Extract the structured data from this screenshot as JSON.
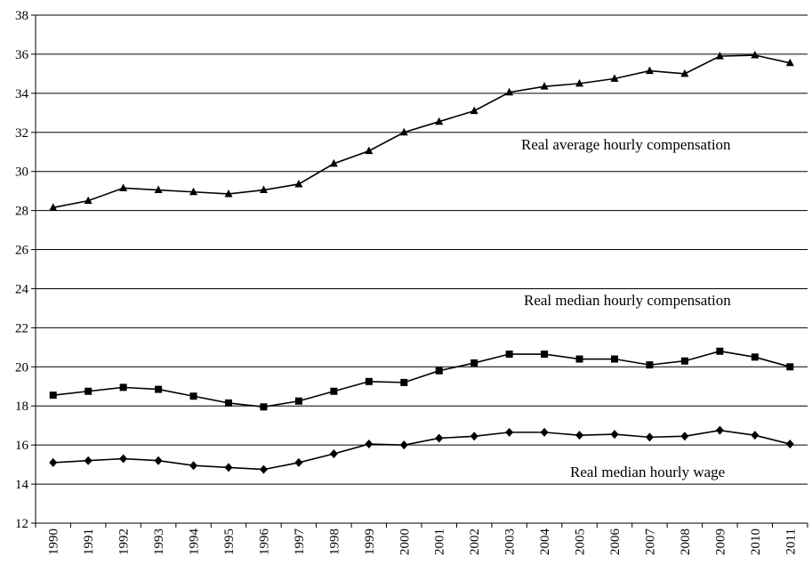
{
  "chart_data": {
    "type": "line",
    "title": "",
    "xlabel": "",
    "ylabel": "",
    "ylim": [
      12,
      38
    ],
    "yticks": [
      12,
      14,
      16,
      18,
      20,
      22,
      24,
      26,
      28,
      30,
      32,
      34,
      36,
      38
    ],
    "grid": "horizontal",
    "legend": "inline labels",
    "categories": [
      "1990",
      "1991",
      "1992",
      "1993",
      "1994",
      "1995",
      "1996",
      "1997",
      "1998",
      "1999",
      "2000",
      "2001",
      "2002",
      "2003",
      "2004",
      "2005",
      "2006",
      "2007",
      "2008",
      "2009",
      "2010",
      "2011"
    ],
    "series": [
      {
        "name": "Real average hourly compensation",
        "marker": "triangle",
        "color": "#000000",
        "values": [
          28.15,
          28.5,
          29.15,
          29.05,
          28.95,
          28.85,
          29.05,
          29.35,
          30.4,
          31.05,
          32.0,
          32.55,
          33.1,
          34.05,
          34.35,
          34.5,
          34.75,
          35.15,
          35.0,
          35.9,
          35.95,
          35.55
        ]
      },
      {
        "name": "Real median hourly compensation",
        "marker": "square",
        "color": "#000000",
        "values": [
          18.55,
          18.75,
          18.95,
          18.85,
          18.5,
          18.15,
          17.95,
          18.25,
          18.75,
          19.25,
          19.2,
          19.8,
          20.2,
          20.65,
          20.65,
          20.4,
          20.4,
          20.1,
          20.3,
          20.8,
          20.5,
          20.0
        ]
      },
      {
        "name": "Real median hourly wage",
        "marker": "diamond",
        "color": "#000000",
        "values": [
          15.1,
          15.2,
          15.3,
          15.2,
          14.95,
          14.85,
          14.75,
          15.1,
          15.55,
          16.05,
          16.0,
          16.35,
          16.45,
          16.65,
          16.65,
          16.5,
          16.55,
          16.4,
          16.45,
          16.75,
          16.5,
          16.05
        ]
      }
    ]
  }
}
